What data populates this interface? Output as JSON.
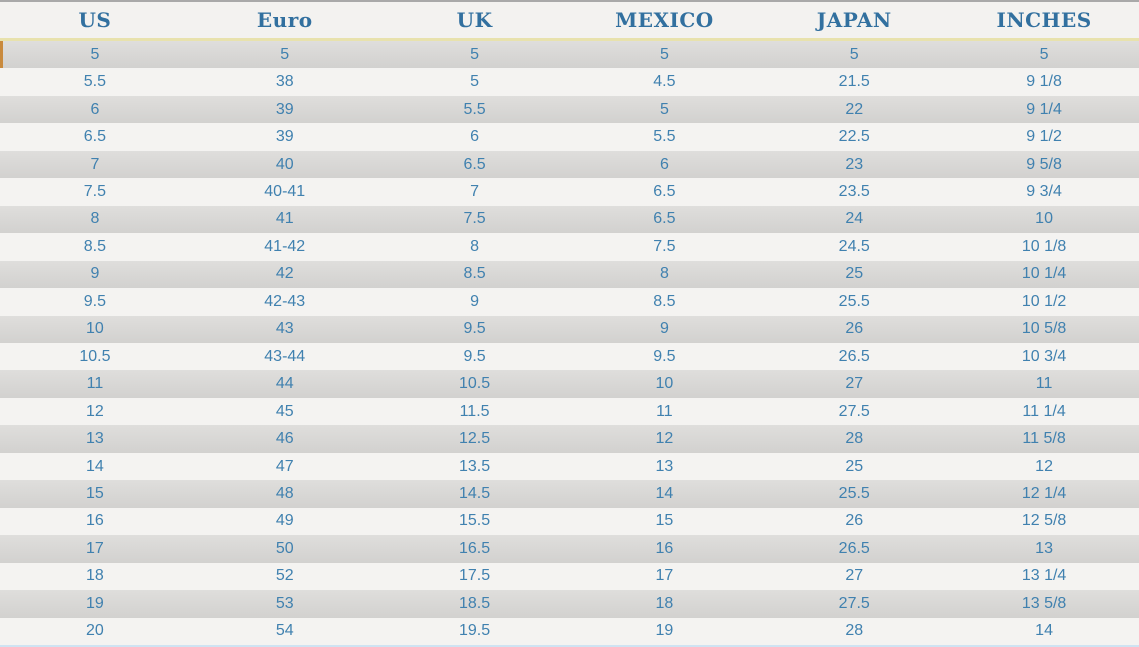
{
  "chart_data": {
    "type": "table",
    "columns": [
      "US",
      "Euro",
      "UK",
      "MEXICO",
      "JAPAN",
      "INCHES"
    ],
    "rows": [
      [
        "5",
        "5",
        "5",
        "5",
        "5",
        "5"
      ],
      [
        "5.5",
        "38",
        "5",
        "4.5",
        "21.5",
        "9 1/8"
      ],
      [
        "6",
        "39",
        "5.5",
        "5",
        "22",
        "9 1/4"
      ],
      [
        "6.5",
        "39",
        "6",
        "5.5",
        "22.5",
        "9 1/2"
      ],
      [
        "7",
        "40",
        "6.5",
        "6",
        "23",
        "9 5/8"
      ],
      [
        "7.5",
        "40-41",
        "7",
        "6.5",
        "23.5",
        "9 3/4"
      ],
      [
        "8",
        "41",
        "7.5",
        "6.5",
        "24",
        "10"
      ],
      [
        "8.5",
        "41-42",
        "8",
        "7.5",
        "24.5",
        "10 1/8"
      ],
      [
        "9",
        "42",
        "8.5",
        "8",
        "25",
        "10 1/4"
      ],
      [
        "9.5",
        "42-43",
        "9",
        "8.5",
        "25.5",
        "10 1/2"
      ],
      [
        "10",
        "43",
        "9.5",
        "9",
        "26",
        "10 5/8"
      ],
      [
        "10.5",
        "43-44",
        "9.5",
        "9.5",
        "26.5",
        "10 3/4"
      ],
      [
        "11",
        "44",
        "10.5",
        "10",
        "27",
        "11"
      ],
      [
        "12",
        "45",
        "11.5",
        "11",
        "27.5",
        "11 1/4"
      ],
      [
        "13",
        "46",
        "12.5",
        "12",
        "28",
        "11 5/8"
      ],
      [
        "14",
        "47",
        "13.5",
        "13",
        "25",
        "12"
      ],
      [
        "15",
        "48",
        "14.5",
        "14",
        "25.5",
        "12 1/4"
      ],
      [
        "16",
        "49",
        "15.5",
        "15",
        "26",
        "12 5/8"
      ],
      [
        "17",
        "50",
        "16.5",
        "16",
        "26.5",
        "13"
      ],
      [
        "18",
        "52",
        "17.5",
        "17",
        "27",
        "13 1/4"
      ],
      [
        "19",
        "53",
        "18.5",
        "18",
        "27.5",
        "13 5/8"
      ],
      [
        "20",
        "54",
        "19.5",
        "19",
        "28",
        "14"
      ]
    ]
  },
  "colors": {
    "header_text": "#32709f",
    "cell_text": "#4081af",
    "row_gray_top": "#dfdedc",
    "row_gray_bottom": "#d2d1cf",
    "row_light": "#f4f3f1",
    "header_bg": "#f3f2f0",
    "divider_yellow": "#e8e2ad",
    "top_border": "#a9a9a9",
    "accent_orange": "#c98a3d",
    "bottom_border": "#cfe3f2"
  }
}
